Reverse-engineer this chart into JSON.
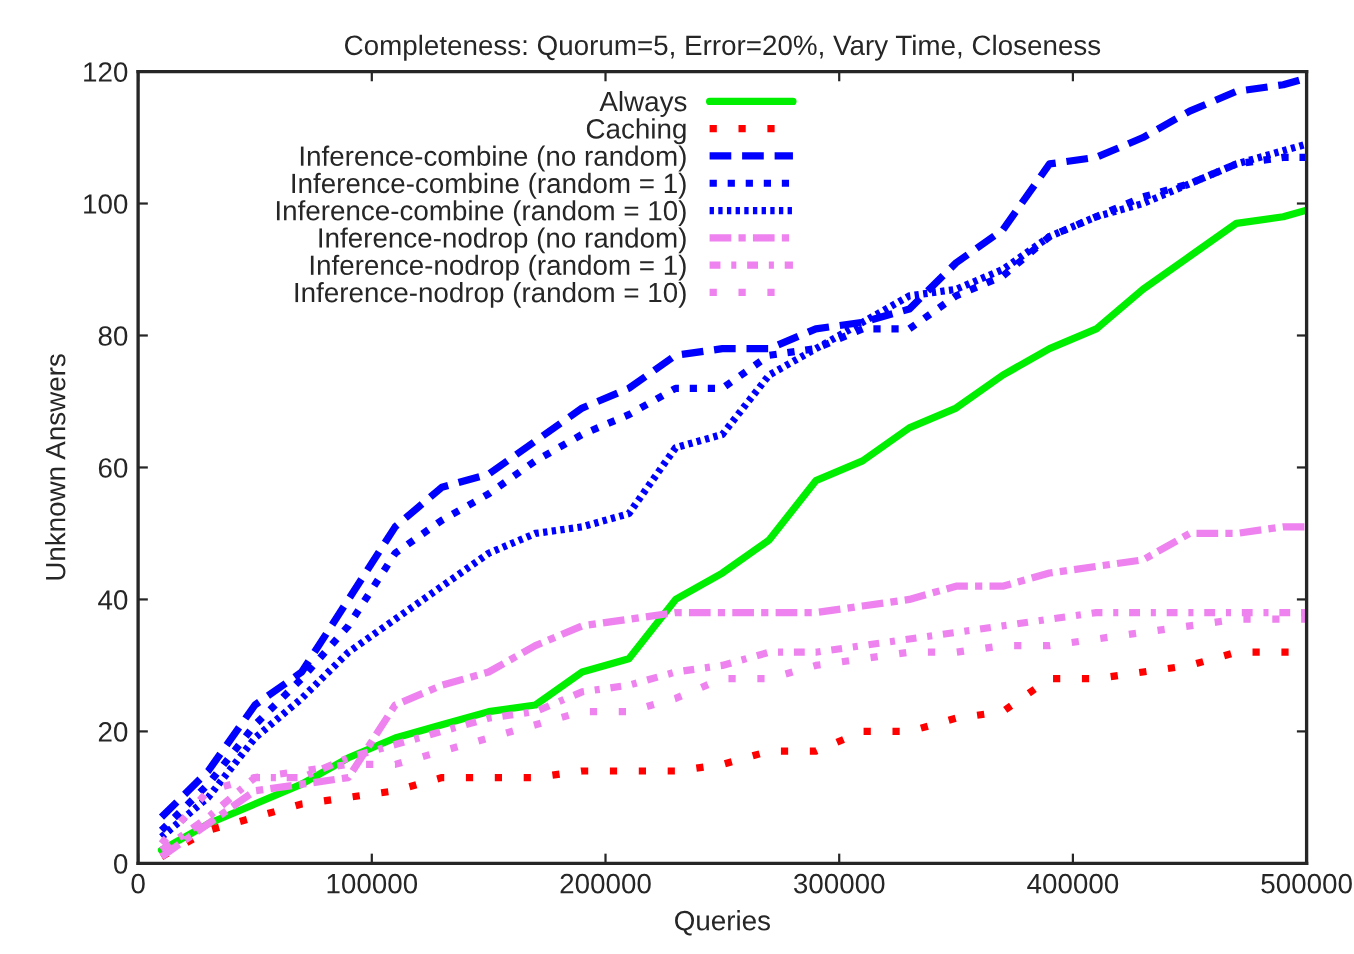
{
  "chart_data": {
    "type": "line",
    "title": "Completeness: Quorum=5, Error=20%, Vary Time, Closeness",
    "xlabel": "Queries",
    "ylabel": "Unknown Answers",
    "x": [
      10000,
      30000,
      50000,
      70000,
      90000,
      110000,
      130000,
      150000,
      170000,
      190000,
      210000,
      230000,
      250000,
      270000,
      290000,
      310000,
      330000,
      350000,
      370000,
      390000,
      410000,
      430000,
      450000,
      470000,
      490000,
      500000
    ],
    "xlim": [
      0,
      500000
    ],
    "xticks": [
      0,
      100000,
      200000,
      300000,
      400000,
      500000
    ],
    "ylim": [
      0,
      120
    ],
    "yticks": [
      0,
      20,
      40,
      60,
      80,
      100,
      120
    ],
    "grid": false,
    "legend": "top left",
    "series": [
      {
        "name": "Always",
        "color": "#00ee00",
        "line_style": "solid",
        "values": [
          2,
          6,
          9,
          12,
          16,
          19,
          21,
          23,
          24,
          29,
          31,
          40,
          44,
          49,
          58,
          61,
          66,
          69,
          74,
          78,
          81,
          87,
          92,
          97,
          98,
          99
        ]
      },
      {
        "name": "Caching",
        "color": "#ff0000",
        "line_style": "dotted",
        "values": [
          1,
          5,
          7,
          9,
          10,
          11,
          13,
          13,
          13,
          14,
          14,
          14,
          15,
          17,
          17,
          20,
          20,
          22,
          23,
          28,
          28,
          29,
          30,
          32,
          32,
          32
        ]
      },
      {
        "name": "Inference-combine (no random)",
        "color": "#0000ff",
        "line_style": "dashed",
        "values": [
          7,
          14,
          24,
          29,
          40,
          51,
          57,
          59,
          64,
          69,
          72,
          77,
          78,
          78,
          81,
          82,
          84,
          91,
          96,
          106,
          107,
          110,
          114,
          117,
          118,
          119
        ]
      },
      {
        "name": "Inference-combine (random = 1)",
        "color": "#0000ff",
        "line_style": "dotted",
        "values": [
          5,
          12,
          21,
          28,
          36,
          47,
          52,
          56,
          61,
          65,
          68,
          72,
          72,
          77,
          78,
          81,
          81,
          86,
          89,
          95,
          98,
          101,
          103,
          106,
          107,
          107
        ]
      },
      {
        "name": "Inference-combine (random = 10)",
        "color": "#0000ff",
        "line_style": "dotted",
        "values": [
          4,
          10,
          19,
          25,
          32,
          37,
          42,
          47,
          50,
          51,
          53,
          63,
          65,
          74,
          78,
          82,
          86,
          87,
          90,
          95,
          98,
          100,
          103,
          106,
          108,
          109
        ]
      },
      {
        "name": "Inference-nodrop (no random)",
        "color": "#ee82ee",
        "line_style": "dashdot",
        "values": [
          1,
          6,
          11,
          12,
          13,
          24,
          27,
          29,
          33,
          36,
          37,
          38,
          38,
          38,
          38,
          39,
          40,
          42,
          42,
          44,
          45,
          46,
          50,
          50,
          51,
          51
        ]
      },
      {
        "name": "Inference-nodrop (random = 1)",
        "color": "#ee82ee",
        "line_style": "dashdot",
        "values": [
          2,
          7,
          13,
          13,
          16,
          18,
          20,
          22,
          23,
          26,
          27,
          29,
          30,
          32,
          32,
          33,
          34,
          35,
          36,
          37,
          38,
          38,
          38,
          38,
          38,
          38
        ]
      },
      {
        "name": "Inference-nodrop (random = 10)",
        "color": "#ee82ee",
        "line_style": "dotted",
        "values": [
          3,
          11,
          13,
          14,
          15,
          15,
          17,
          19,
          21,
          23,
          23,
          25,
          28,
          28,
          30,
          31,
          32,
          32,
          33,
          33,
          34,
          35,
          36,
          37,
          37,
          37
        ]
      }
    ]
  }
}
